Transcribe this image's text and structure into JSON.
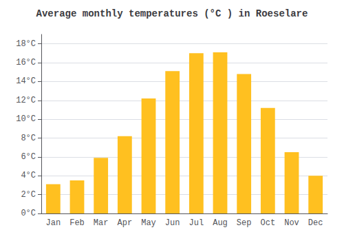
{
  "chart_data": {
    "type": "bar",
    "title": "Average monthly temperatures (°C ) in Roeselare",
    "categories": [
      "Jan",
      "Feb",
      "Mar",
      "Apr",
      "May",
      "Jun",
      "Jul",
      "Aug",
      "Sep",
      "Oct",
      "Nov",
      "Dec"
    ],
    "values": [
      3.1,
      3.5,
      5.9,
      8.2,
      12.2,
      15.1,
      17.0,
      17.1,
      14.8,
      11.2,
      6.5,
      4.0
    ],
    "color": "#FFC020",
    "ylim": [
      0,
      19
    ],
    "yticks": [
      {
        "value": 0,
        "label": "0°C"
      },
      {
        "value": 2,
        "label": "2°C"
      },
      {
        "value": 4,
        "label": "4°C"
      },
      {
        "value": 6,
        "label": "6°C"
      },
      {
        "value": 8,
        "label": "8°C"
      },
      {
        "value": 10,
        "label": "10°C"
      },
      {
        "value": 12,
        "label": "12°C"
      },
      {
        "value": 14,
        "label": "14°C"
      },
      {
        "value": 16,
        "label": "16°C"
      },
      {
        "value": 18,
        "label": "18°C"
      }
    ],
    "grid": true
  }
}
